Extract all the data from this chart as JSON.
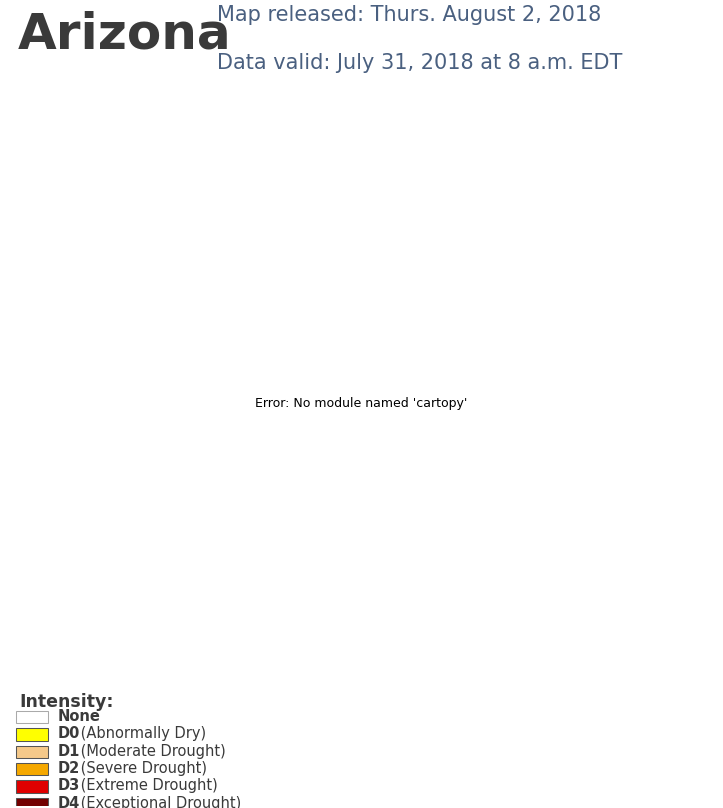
{
  "title": "Arizona",
  "title_fontsize": 36,
  "title_color": "#3a3a3a",
  "subtitle1": "Map released: Thurs. August 2, 2018",
  "subtitle2": "Data valid: July 31, 2018 at 8 a.m. EDT",
  "subtitle_fontsize": 15,
  "subtitle_color": "#4a6080",
  "background_color": "#ffffff",
  "drought_colors": {
    "None": "#ffffff",
    "D0": "#ffff00",
    "D1": "#f5c98a",
    "D2": "#f5a800",
    "D3": "#e00000",
    "D4": "#730000"
  },
  "legend_items": [
    {
      "key": "None",
      "label": "None",
      "code": "",
      "desc": ""
    },
    {
      "key": "D0",
      "code": "D0",
      "desc": " (Abnormally Dry)"
    },
    {
      "key": "D1",
      "code": "D1",
      "desc": " (Moderate Drought)"
    },
    {
      "key": "D2",
      "code": "D2",
      "desc": " (Severe Drought)"
    },
    {
      "key": "D3",
      "code": "D3",
      "desc": " (Extreme Drought)"
    },
    {
      "key": "D4",
      "code": "D4",
      "desc": " (Exceptional Drought)"
    }
  ],
  "river_color": "#5bbcf5",
  "county_edge_color": "#111111",
  "state_edge_color": "#111111",
  "state_edge_width": 2.5,
  "county_edge_width": 1.1,
  "az_lon_min": -115.0,
  "az_lon_max": -108.9,
  "az_lat_min": 31.2,
  "az_lat_max": 37.1,
  "figsize": [
    7.23,
    8.08
  ],
  "dpi": 100
}
